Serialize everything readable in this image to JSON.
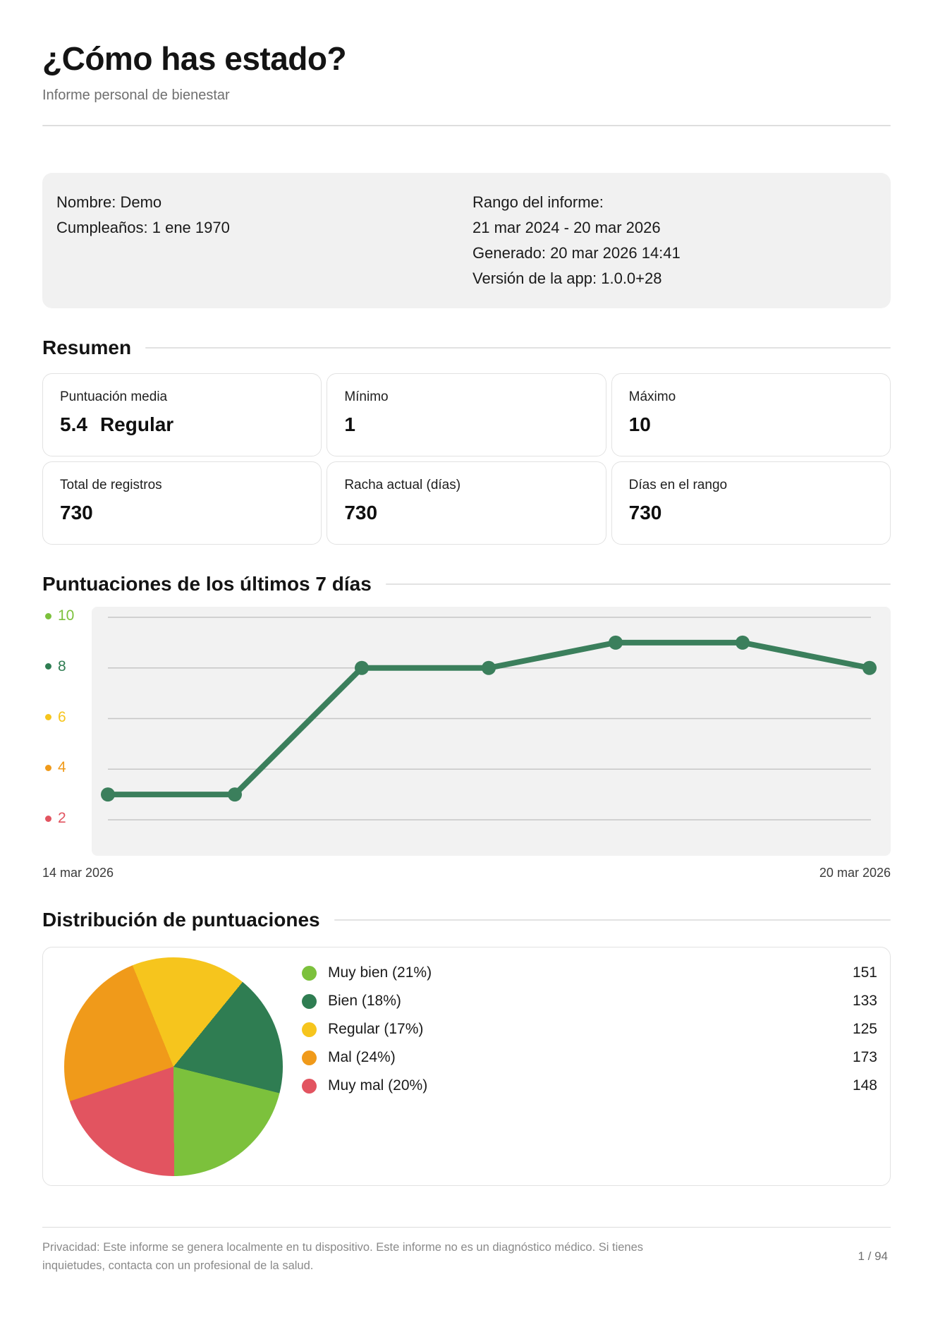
{
  "header": {
    "title": "¿Cómo has estado?",
    "subtitle": "Informe personal de bienestar"
  },
  "info": {
    "left": [
      "Nombre: Demo",
      "Cumpleaños: 1 ene 1970"
    ],
    "right": [
      "Rango del informe:",
      "21 mar 2024 - 20 mar 2026",
      "Generado: 20 mar 2026 14:41",
      "Versión de la app: 1.0.0+28"
    ]
  },
  "summary": {
    "heading": "Resumen",
    "cards": [
      {
        "label": "Puntuación media",
        "value": "5.4",
        "suffix": "Regular"
      },
      {
        "label": "Mínimo",
        "value": "1"
      },
      {
        "label": "Máximo",
        "value": "10"
      },
      {
        "label": "Total de registros",
        "value": "730"
      },
      {
        "label": "Racha actual (días)",
        "value": "730"
      },
      {
        "label": "Días en el rango",
        "value": "730"
      }
    ]
  },
  "chart_data": [
    {
      "type": "line",
      "title": "Puntuaciones de los últimos 7 días",
      "values": [
        3,
        3,
        8,
        8,
        9,
        9,
        8
      ],
      "x_axis_labels": [
        "14 mar 2026",
        "20 mar 2026"
      ],
      "y_ticks": [
        10,
        8,
        6,
        4,
        2
      ],
      "y_tick_colors": [
        "#7cc13c",
        "#2f7d52",
        "#f6c51d",
        "#f09a1a",
        "#e25460"
      ],
      "ylim": [
        0.6,
        10.4
      ],
      "line_color": "#3b7f5c",
      "grid": true,
      "plot_bg": "#f2f2f2",
      "grid_color": "#c6c6c6"
    },
    {
      "type": "pie",
      "title": "Distribución de puntuaciones",
      "segments": [
        {
          "label": "Muy bien (21%)",
          "pct": 21,
          "count": 151,
          "color": "#7cc13c"
        },
        {
          "label": "Bien (18%)",
          "pct": 18,
          "count": 133,
          "color": "#2f7d52"
        },
        {
          "label": "Regular (17%)",
          "pct": 17,
          "count": 125,
          "color": "#f6c51d"
        },
        {
          "label": "Mal (24%)",
          "pct": 24,
          "count": 173,
          "color": "#f09a1a"
        },
        {
          "label": "Muy mal (20%)",
          "pct": 20,
          "count": 148,
          "color": "#e25460"
        }
      ],
      "start_angle_deg": 104,
      "render_order": [
        0,
        4,
        3,
        2,
        1
      ],
      "legend_position": "right"
    }
  ],
  "footer": {
    "privacy": "Privacidad: Este informe se genera localmente en tu dispositivo. Este informe no es un diagnóstico médico. Si tienes inquietudes, contacta con un profesional de la salud.",
    "page_number": "1 / 94"
  }
}
